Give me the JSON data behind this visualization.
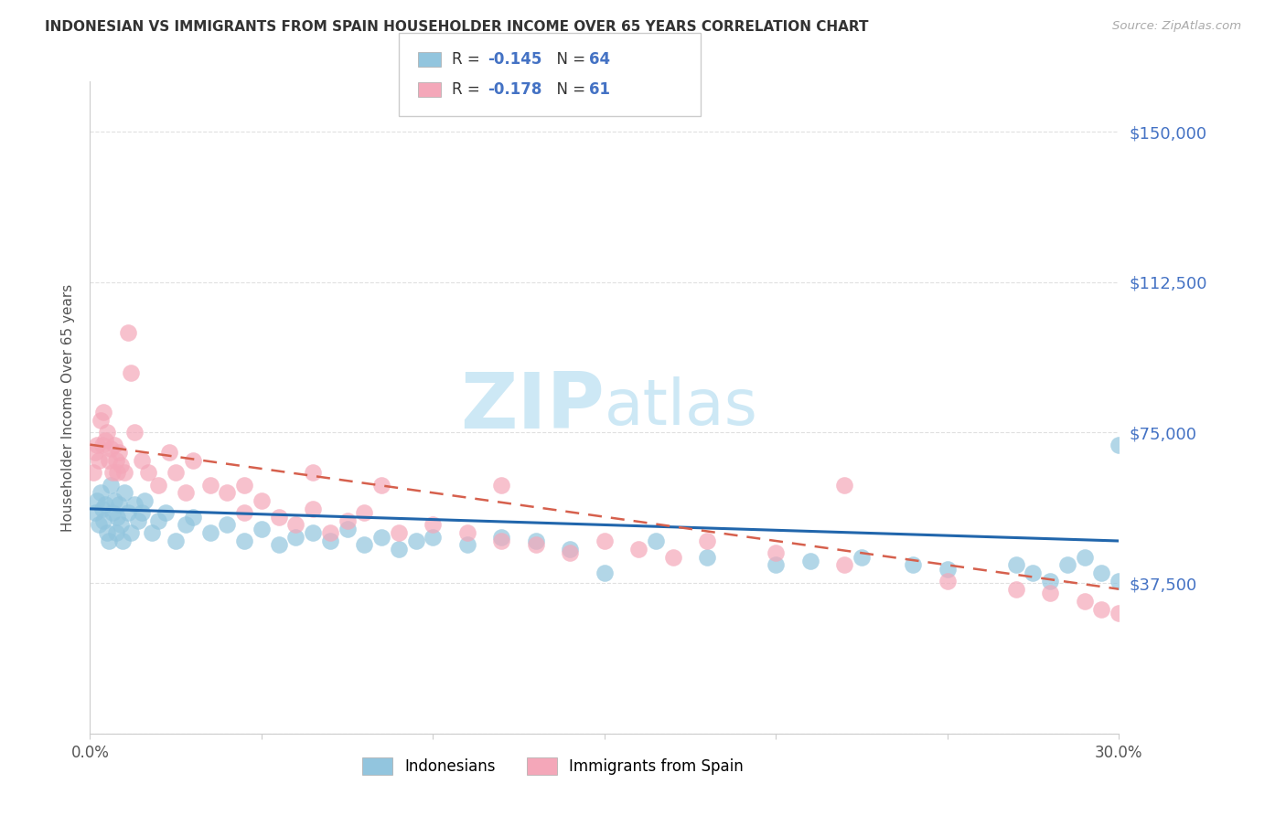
{
  "title": "INDONESIAN VS IMMIGRANTS FROM SPAIN HOUSEHOLDER INCOME OVER 65 YEARS CORRELATION CHART",
  "source": "Source: ZipAtlas.com",
  "ylabel": "Householder Income Over 65 years",
  "xlim": [
    0.0,
    30.0
  ],
  "ylim": [
    0,
    162500
  ],
  "ytick_positions": [
    0,
    37500,
    75000,
    112500,
    150000
  ],
  "ytick_labels": [
    "",
    "$37,500",
    "$75,000",
    "$112,500",
    "$150,000"
  ],
  "indonesian_R": -0.145,
  "indonesian_N": 64,
  "spain_R": -0.178,
  "spain_N": 61,
  "blue_scatter_color": "#92c5de",
  "pink_scatter_color": "#f4a7b9",
  "blue_line_color": "#2166ac",
  "pink_line_color": "#d6604d",
  "grid_color": "#dddddd",
  "title_color": "#333333",
  "source_color": "#aaaaaa",
  "ylabel_color": "#555555",
  "tick_label_color": "#4472c4",
  "watermark_color": "#cde8f5",
  "indonesian_x": [
    0.15,
    0.2,
    0.25,
    0.3,
    0.35,
    0.4,
    0.45,
    0.5,
    0.55,
    0.6,
    0.65,
    0.7,
    0.75,
    0.8,
    0.85,
    0.9,
    0.95,
    1.0,
    1.1,
    1.2,
    1.3,
    1.4,
    1.5,
    1.6,
    1.8,
    2.0,
    2.2,
    2.5,
    2.8,
    3.0,
    3.5,
    4.0,
    4.5,
    5.0,
    5.5,
    6.0,
    6.5,
    7.0,
    7.5,
    8.0,
    8.5,
    9.0,
    9.5,
    10.0,
    11.0,
    12.0,
    13.0,
    14.0,
    15.0,
    16.5,
    18.0,
    20.0,
    21.0,
    22.5,
    24.0,
    25.0,
    27.0,
    27.5,
    28.0,
    28.5,
    29.0,
    29.5,
    30.0,
    30.0
  ],
  "indonesian_y": [
    55000,
    58000,
    52000,
    60000,
    56000,
    53000,
    57000,
    50000,
    48000,
    62000,
    55000,
    58000,
    50000,
    54000,
    57000,
    52000,
    48000,
    60000,
    55000,
    50000,
    57000,
    53000,
    55000,
    58000,
    50000,
    53000,
    55000,
    48000,
    52000,
    54000,
    50000,
    52000,
    48000,
    51000,
    47000,
    49000,
    50000,
    48000,
    51000,
    47000,
    49000,
    46000,
    48000,
    49000,
    47000,
    49000,
    48000,
    46000,
    40000,
    48000,
    44000,
    42000,
    43000,
    44000,
    42000,
    41000,
    42000,
    40000,
    38000,
    42000,
    44000,
    40000,
    38000,
    72000
  ],
  "spain_x": [
    0.1,
    0.15,
    0.2,
    0.25,
    0.3,
    0.35,
    0.4,
    0.45,
    0.5,
    0.55,
    0.6,
    0.65,
    0.7,
    0.75,
    0.8,
    0.85,
    0.9,
    1.0,
    1.1,
    1.2,
    1.3,
    1.5,
    1.7,
    2.0,
    2.3,
    2.5,
    2.8,
    3.0,
    3.5,
    4.0,
    4.5,
    5.0,
    5.5,
    6.0,
    6.5,
    7.0,
    7.5,
    8.0,
    9.0,
    10.0,
    11.0,
    12.0,
    13.0,
    14.0,
    15.0,
    16.0,
    17.0,
    18.0,
    20.0,
    22.0,
    25.0,
    27.0,
    28.0,
    29.0,
    29.5,
    30.0,
    4.5,
    6.5,
    8.5,
    12.0,
    22.0
  ],
  "spain_y": [
    65000,
    70000,
    72000,
    68000,
    78000,
    72000,
    80000,
    73000,
    75000,
    68000,
    71000,
    65000,
    72000,
    68000,
    65000,
    70000,
    67000,
    65000,
    100000,
    90000,
    75000,
    68000,
    65000,
    62000,
    70000,
    65000,
    60000,
    68000,
    62000,
    60000,
    55000,
    58000,
    54000,
    52000,
    56000,
    50000,
    53000,
    55000,
    50000,
    52000,
    50000,
    48000,
    47000,
    45000,
    48000,
    46000,
    44000,
    48000,
    45000,
    42000,
    38000,
    36000,
    35000,
    33000,
    31000,
    30000,
    62000,
    65000,
    62000,
    62000,
    62000
  ]
}
